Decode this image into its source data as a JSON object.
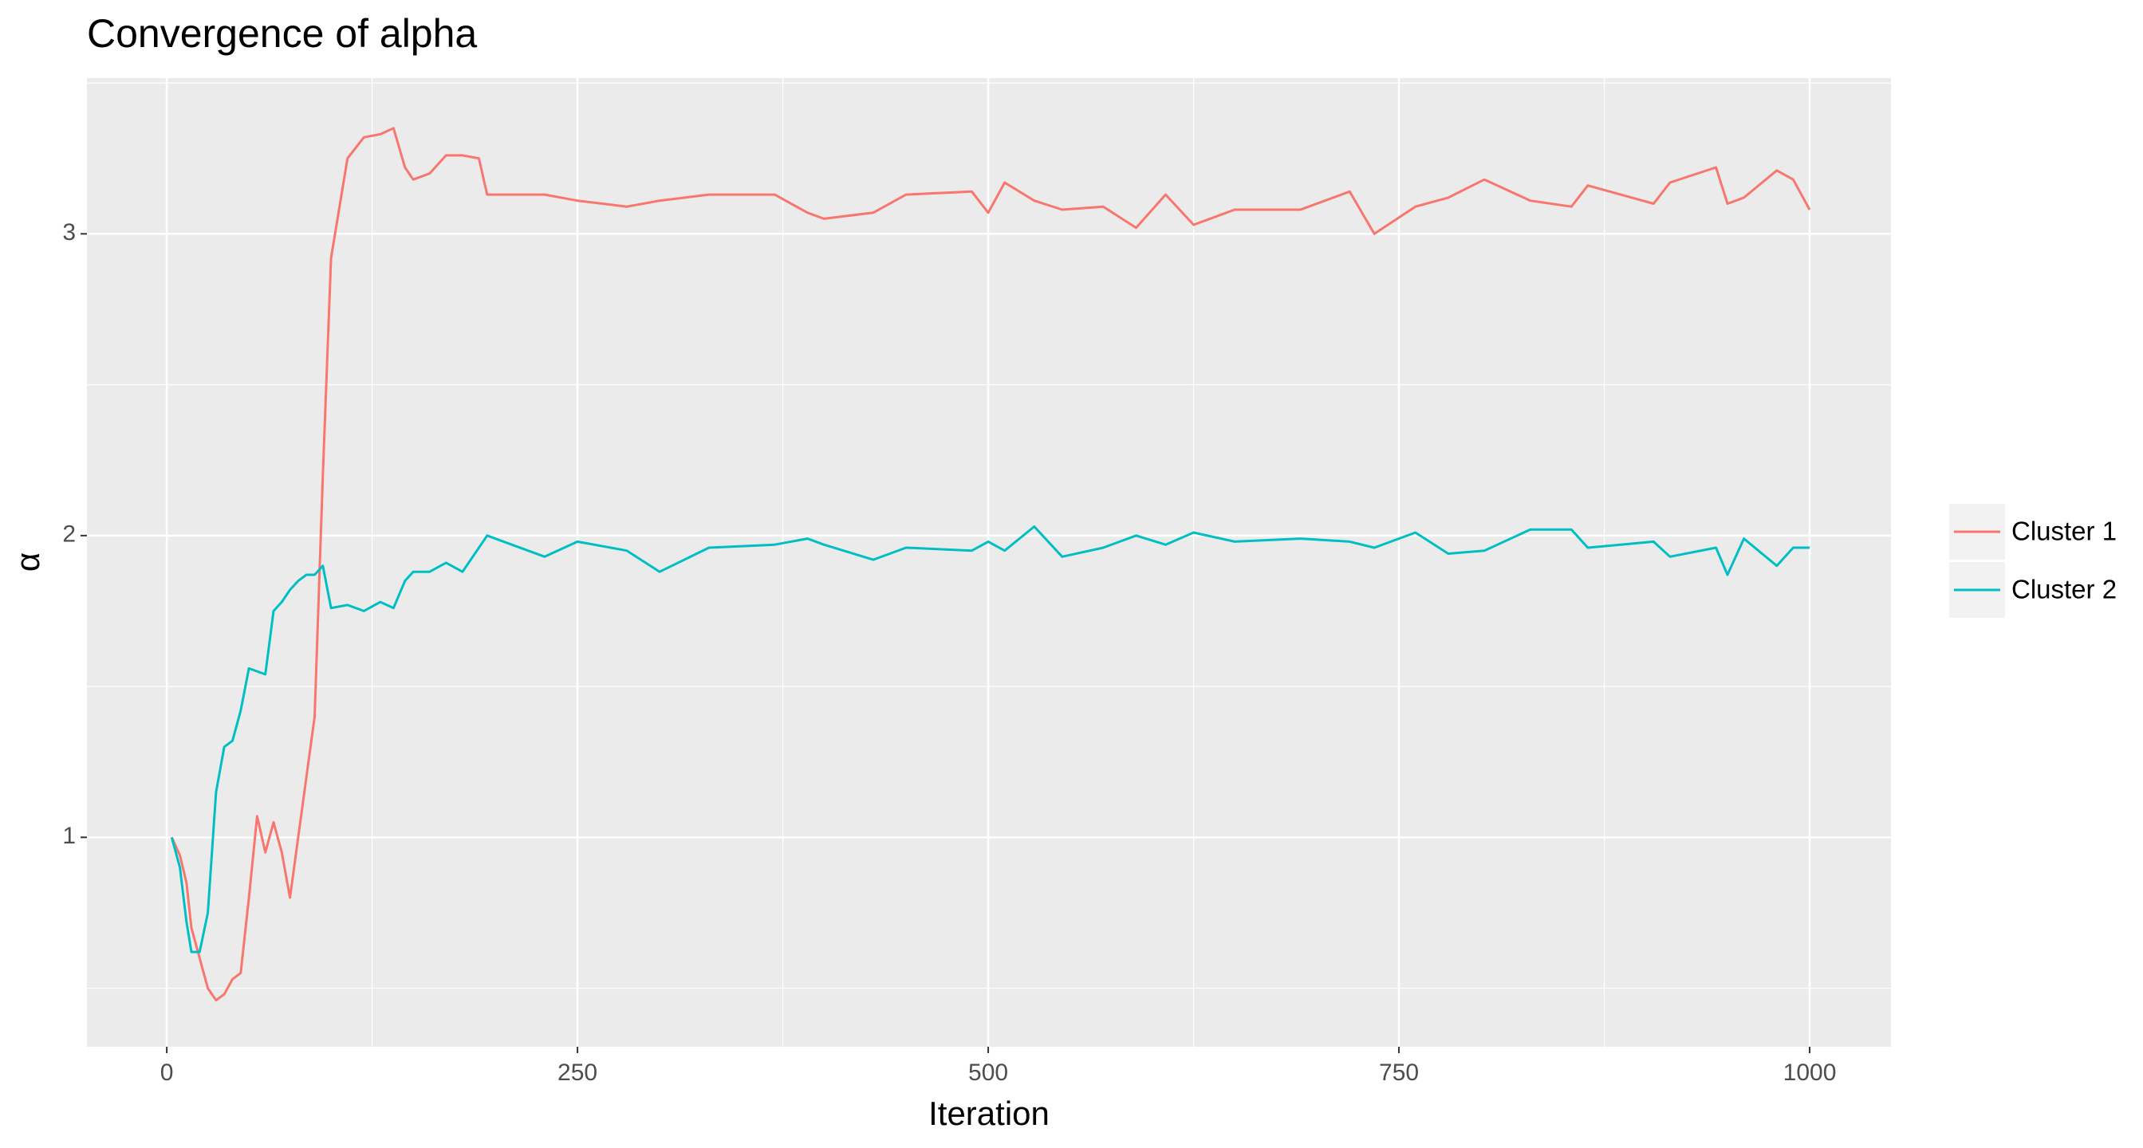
{
  "chart_data": {
    "type": "line",
    "title": "Convergence of alpha",
    "xlabel": "Iteration",
    "ylabel": "α",
    "x": [
      3,
      8,
      12,
      15,
      20,
      25,
      30,
      35,
      40,
      45,
      50,
      55,
      60,
      65,
      70,
      75,
      80,
      85,
      90,
      95,
      100,
      110,
      120,
      130,
      138,
      145,
      150,
      160,
      170,
      180,
      190,
      195,
      210,
      230,
      250,
      280,
      300,
      330,
      370,
      390,
      400,
      430,
      450,
      490,
      500,
      510,
      528,
      545,
      570,
      590,
      608,
      625,
      650,
      690,
      720,
      735,
      760,
      780,
      802,
      830,
      855,
      865,
      905,
      915,
      943,
      950,
      960,
      980,
      990,
      1000
    ],
    "series": [
      {
        "name": "Cluster 1",
        "color": "#f8766d",
        "values": [
          1.0,
          0.94,
          0.85,
          0.7,
          0.6,
          0.5,
          0.46,
          0.48,
          0.53,
          0.55,
          0.8,
          1.07,
          0.95,
          1.05,
          0.95,
          0.8,
          1.0,
          1.2,
          1.4,
          2.2,
          2.92,
          3.25,
          3.32,
          3.33,
          3.35,
          3.22,
          3.18,
          3.2,
          3.26,
          3.26,
          3.25,
          3.13,
          3.13,
          3.13,
          3.11,
          3.09,
          3.11,
          3.13,
          3.13,
          3.07,
          3.05,
          3.07,
          3.13,
          3.14,
          3.07,
          3.17,
          3.11,
          3.08,
          3.09,
          3.02,
          3.13,
          3.03,
          3.08,
          3.08,
          3.14,
          3.0,
          3.09,
          3.12,
          3.18,
          3.11,
          3.09,
          3.16,
          3.1,
          3.17,
          3.22,
          3.1,
          3.12,
          3.21,
          3.18,
          3.08
        ]
      },
      {
        "name": "Cluster 2",
        "color": "#00bfc4",
        "values": [
          1.0,
          0.9,
          0.72,
          0.62,
          0.62,
          0.75,
          1.15,
          1.3,
          1.32,
          1.42,
          1.56,
          1.55,
          1.54,
          1.75,
          1.78,
          1.82,
          1.85,
          1.87,
          1.87,
          1.9,
          1.76,
          1.77,
          1.75,
          1.78,
          1.76,
          1.85,
          1.88,
          1.88,
          1.91,
          1.88,
          1.96,
          2.0,
          1.97,
          1.93,
          1.98,
          1.95,
          1.88,
          1.96,
          1.97,
          1.99,
          1.97,
          1.92,
          1.96,
          1.95,
          1.98,
          1.95,
          2.03,
          1.93,
          1.96,
          2.0,
          1.97,
          2.01,
          1.98,
          1.99,
          1.98,
          1.96,
          2.01,
          1.94,
          1.95,
          2.02,
          2.02,
          1.96,
          1.98,
          1.93,
          1.96,
          1.87,
          1.99,
          1.9,
          1.96,
          1.96
        ]
      }
    ],
    "xlim": [
      -48.6,
      1049.5
    ],
    "xticks": [
      0,
      250,
      500,
      750,
      1000
    ],
    "ylim": [
      0.306,
      3.516
    ],
    "yticks": [
      1,
      2,
      3
    ],
    "grid": true,
    "legend": "right"
  }
}
